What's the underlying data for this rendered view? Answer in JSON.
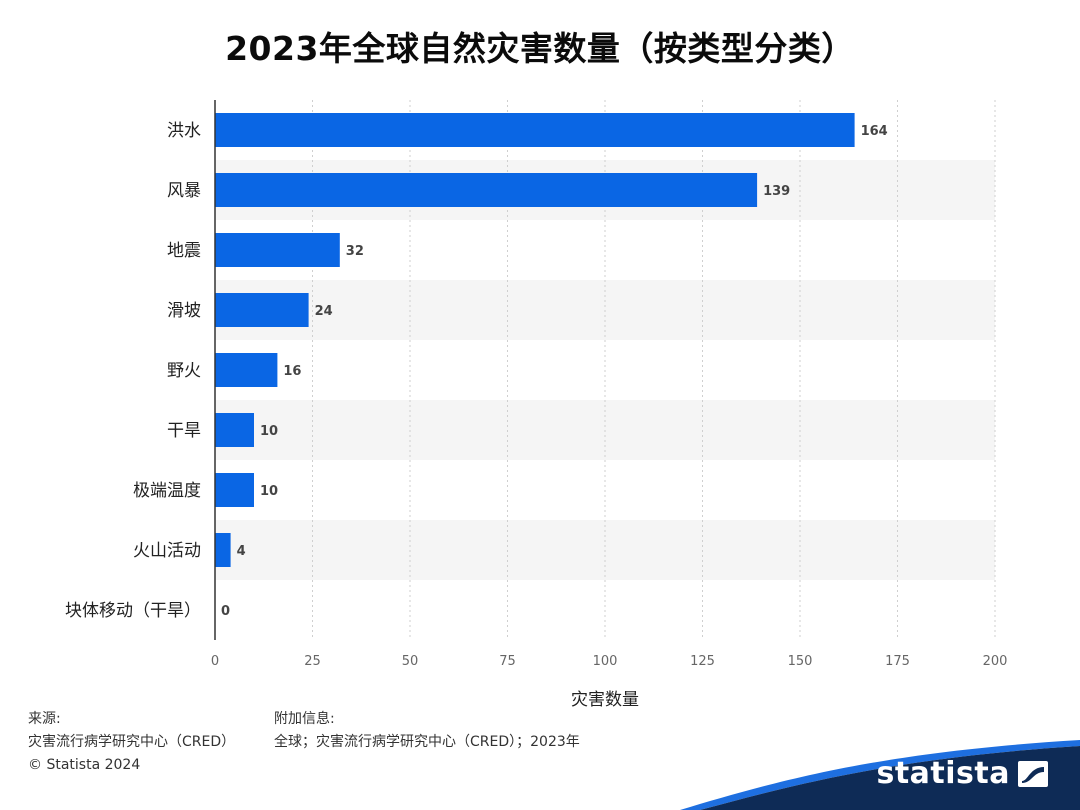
{
  "chart_data": {
    "type": "bar",
    "orientation": "horizontal",
    "title": "2023年全球自然灾害数量（按类型分类）",
    "xlabel": "灾害数量",
    "ylabel": "",
    "categories": [
      "洪水",
      "风暴",
      "地震",
      "滑坡",
      "野火",
      "干旱",
      "极端温度",
      "火山活动",
      "块体移动（干旱）"
    ],
    "values": [
      164,
      139,
      32,
      24,
      16,
      10,
      10,
      4,
      0
    ],
    "xlim": [
      0,
      200
    ],
    "xticks": [
      "0",
      "25",
      "50",
      "75",
      "100",
      "125",
      "150",
      "175",
      "200"
    ],
    "grid": true,
    "bar_color": "#0a66e4"
  },
  "footer": {
    "source_head": "来源:",
    "source_text": "灾害流行病学研究中心（CRED）",
    "copyright": "© Statista 2024",
    "info_head": "附加信息:",
    "info_text": "全球；灾害流行病学研究中心（CRED）；2023年"
  },
  "brand": {
    "name": "statista",
    "logo_icon": "statista-logo-icon",
    "wave_color": "#0e2b56",
    "wave_accent": "#1e6fe0"
  }
}
